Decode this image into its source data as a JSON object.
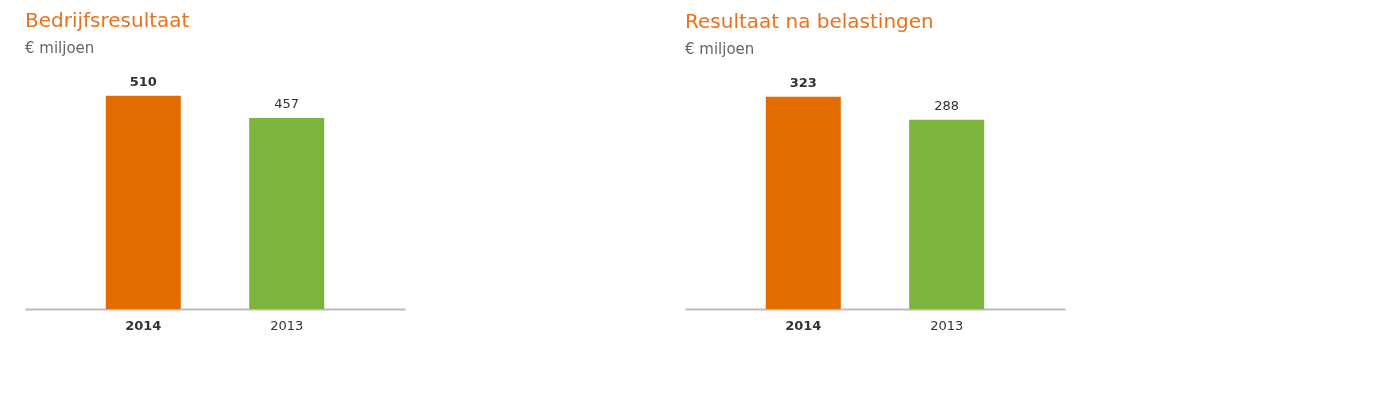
{
  "chart_data": [
    {
      "type": "bar",
      "title": "Bedrijfsresultaat",
      "subtitle": "€ miljoen",
      "categories": [
        "2014",
        "2013"
      ],
      "values": [
        510,
        457
      ],
      "colors": [
        "#e36c00",
        "#7db43e"
      ],
      "data_labels": true
    },
    {
      "type": "bar",
      "title": "Resultaat na belastingen",
      "subtitle": "€ miljoen",
      "categories": [
        "2014",
        "2013"
      ],
      "values": [
        323,
        288
      ],
      "colors": [
        "#e36c00",
        "#7db43e"
      ],
      "data_labels": true
    }
  ]
}
